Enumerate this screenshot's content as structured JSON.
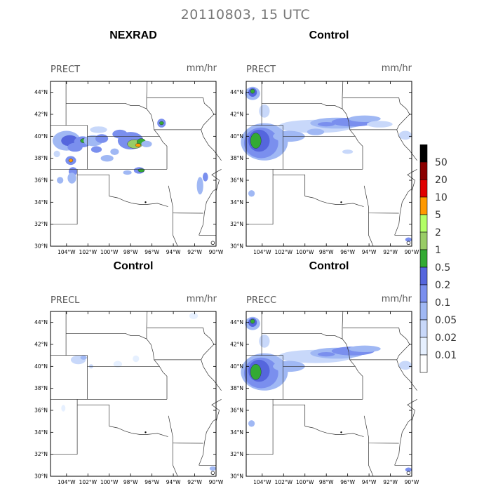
{
  "header": {
    "title": "20110803, 15 UTC"
  },
  "panels": [
    {
      "title": "NEXRAD",
      "variable": "PRECT",
      "units": "mm/hr"
    },
    {
      "title": "Control",
      "variable": "PRECT",
      "units": "mm/hr"
    },
    {
      "title": "Control",
      "variable": "PRECL",
      "units": "mm/hr"
    },
    {
      "title": "Control",
      "variable": "PRECC",
      "units": "mm/hr"
    }
  ],
  "axes": {
    "lat_ticks": [
      "44°N",
      "42°N",
      "40°N",
      "38°N",
      "36°N",
      "34°N",
      "32°N",
      "30°N"
    ],
    "lon_ticks": [
      "104°W",
      "102°W",
      "100°W",
      "98°W",
      "96°W",
      "94°W",
      "92°W",
      "90°W"
    ],
    "lat_range": [
      30,
      45
    ],
    "lon_range": [
      -105.5,
      -90
    ]
  },
  "colorbar": {
    "levels": [
      "50",
      "20",
      "10",
      "5",
      "2",
      "1",
      "0.5",
      "0.2",
      "0.1",
      "0.05",
      "0.02",
      "0.01"
    ],
    "colors": [
      "#000000",
      "#8b0000",
      "#e00000",
      "#ff9900",
      "#b2ff66",
      "#99cc66",
      "#33aa33",
      "#5566dd",
      "#7a8fee",
      "#a0b8f4",
      "#c8d8fa",
      "#e6f0ff",
      "#ffffff"
    ]
  }
}
